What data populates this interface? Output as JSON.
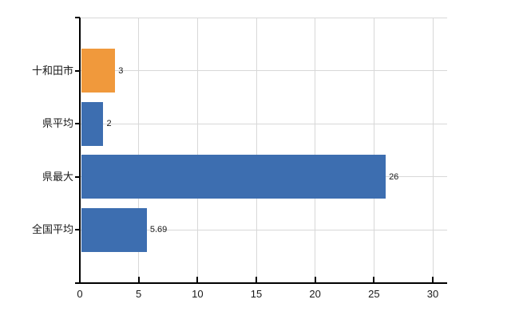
{
  "colors": {
    "background": "#ffffff",
    "bar_blue": "#3d6eb0",
    "bar_orange": "#f0993c",
    "grid": "#d8d8d8",
    "axis": "#000000",
    "text": "#1a1a1a"
  },
  "chart_data": {
    "type": "bar",
    "orientation": "horizontal",
    "title": "",
    "xlabel": "",
    "ylabel": "",
    "grid": true,
    "legend": false,
    "categories": [
      "十和田市",
      "県平均",
      "県最大",
      "全国平均"
    ],
    "values": [
      3,
      2,
      26,
      5.69
    ],
    "value_labels": [
      "3",
      "2",
      "26",
      "5.69"
    ],
    "bar_colors": [
      "#f0993c",
      "#3d6eb0",
      "#3d6eb0",
      "#3d6eb0"
    ],
    "x_ticks": [
      0,
      5,
      10,
      15,
      20,
      25,
      30
    ],
    "x_tick_labels": [
      "0",
      "5",
      "10",
      "15",
      "20",
      "25",
      "30"
    ],
    "xlim": [
      0,
      31.2
    ]
  }
}
